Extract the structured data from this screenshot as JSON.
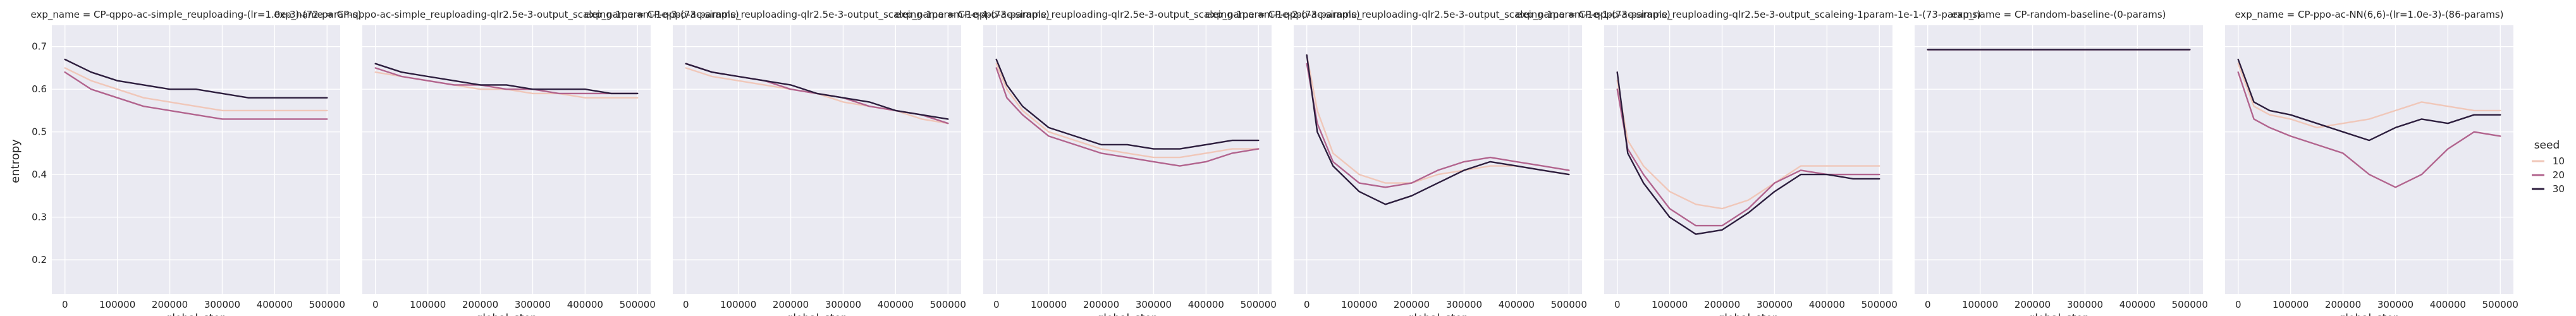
{
  "chart_data": {
    "type": "line",
    "ylabel": "entropy",
    "xlabel": "global_step",
    "x_ticks": [
      0,
      100000,
      200000,
      300000,
      400000,
      500000
    ],
    "y_ticks": [
      0.2,
      0.3,
      0.4,
      0.5,
      0.6,
      0.7
    ],
    "xlim": [
      -25000,
      525000
    ],
    "ylim": [
      0.12,
      0.75
    ],
    "grid": true,
    "legend": {
      "title": "seed",
      "placement": "right",
      "entries": [
        {
          "label": "10",
          "color": "#f0c7b9"
        },
        {
          "label": "20",
          "color": "#b2648e"
        },
        {
          "label": "30",
          "color": "#2d1e3e"
        }
      ]
    },
    "panels": [
      {
        "title": "exp_name = CP-qppo-ac-simple_reuploading-(lr=1.0e-3)-(72-params)",
        "series": [
          {
            "name": "10",
            "x": [
              0,
              50000,
              100000,
              150000,
              200000,
              250000,
              300000,
              350000,
              400000,
              450000,
              500000
            ],
            "y": [
              0.65,
              0.62,
              0.6,
              0.58,
              0.57,
              0.56,
              0.55,
              0.55,
              0.55,
              0.55,
              0.55
            ]
          },
          {
            "name": "20",
            "x": [
              0,
              50000,
              100000,
              150000,
              200000,
              250000,
              300000,
              350000,
              400000,
              450000,
              500000
            ],
            "y": [
              0.64,
              0.6,
              0.58,
              0.56,
              0.55,
              0.54,
              0.53,
              0.53,
              0.53,
              0.53,
              0.53
            ]
          },
          {
            "name": "30",
            "x": [
              0,
              50000,
              100000,
              150000,
              200000,
              250000,
              300000,
              350000,
              400000,
              450000,
              500000
            ],
            "y": [
              0.67,
              0.64,
              0.62,
              0.61,
              0.6,
              0.6,
              0.59,
              0.58,
              0.58,
              0.58,
              0.58
            ]
          }
        ]
      },
      {
        "title": "exp_name = CP-qppo-ac-simple_reuploading-qlr2.5e-3-output_scaleing-1param-1e-3-(73-params)",
        "series": [
          {
            "name": "10",
            "x": [
              0,
              50000,
              100000,
              150000,
              200000,
              250000,
              300000,
              350000,
              400000,
              450000,
              500000
            ],
            "y": [
              0.64,
              0.63,
              0.62,
              0.61,
              0.6,
              0.6,
              0.59,
              0.59,
              0.58,
              0.58,
              0.58
            ]
          },
          {
            "name": "20",
            "x": [
              0,
              50000,
              100000,
              150000,
              200000,
              250000,
              300000,
              350000,
              400000,
              450000,
              500000
            ],
            "y": [
              0.65,
              0.63,
              0.62,
              0.61,
              0.61,
              0.6,
              0.6,
              0.59,
              0.59,
              0.59,
              0.59
            ]
          },
          {
            "name": "30",
            "x": [
              0,
              50000,
              100000,
              150000,
              200000,
              250000,
              300000,
              350000,
              400000,
              450000,
              500000
            ],
            "y": [
              0.66,
              0.64,
              0.63,
              0.62,
              0.61,
              0.61,
              0.6,
              0.6,
              0.6,
              0.59,
              0.59
            ]
          }
        ]
      },
      {
        "title": "exp_name = CP-qppo-ac-simple_reuploading-qlr2.5e-3-output_scaleing-1param-1e-4-(73-params)",
        "series": [
          {
            "name": "10",
            "x": [
              0,
              50000,
              100000,
              150000,
              200000,
              250000,
              300000,
              350000,
              400000,
              450000,
              500000
            ],
            "y": [
              0.65,
              0.63,
              0.62,
              0.61,
              0.6,
              0.59,
              0.57,
              0.56,
              0.55,
              0.53,
              0.52
            ]
          },
          {
            "name": "20",
            "x": [
              0,
              50000,
              100000,
              150000,
              200000,
              250000,
              300000,
              350000,
              400000,
              450000,
              500000
            ],
            "y": [
              0.66,
              0.64,
              0.63,
              0.62,
              0.6,
              0.59,
              0.58,
              0.56,
              0.55,
              0.54,
              0.52
            ]
          },
          {
            "name": "30",
            "x": [
              0,
              50000,
              100000,
              150000,
              200000,
              250000,
              300000,
              350000,
              400000,
              450000,
              500000
            ],
            "y": [
              0.66,
              0.64,
              0.63,
              0.62,
              0.61,
              0.59,
              0.58,
              0.57,
              0.55,
              0.54,
              0.53
            ]
          }
        ]
      },
      {
        "title": "exp_name = CP-qppo-ac-simple_reuploading-qlr2.5e-3-output_scaleing-1param-1e-2-(73-params)",
        "series": [
          {
            "name": "10",
            "x": [
              0,
              20000,
              50000,
              100000,
              150000,
              200000,
              250000,
              300000,
              350000,
              400000,
              450000,
              500000
            ],
            "y": [
              0.66,
              0.6,
              0.55,
              0.5,
              0.48,
              0.46,
              0.45,
              0.44,
              0.44,
              0.45,
              0.46,
              0.46
            ]
          },
          {
            "name": "20",
            "x": [
              0,
              20000,
              50000,
              100000,
              150000,
              200000,
              250000,
              300000,
              350000,
              400000,
              450000,
              500000
            ],
            "y": [
              0.65,
              0.58,
              0.54,
              0.49,
              0.47,
              0.45,
              0.44,
              0.43,
              0.42,
              0.43,
              0.45,
              0.46
            ]
          },
          {
            "name": "30",
            "x": [
              0,
              20000,
              50000,
              100000,
              150000,
              200000,
              250000,
              300000,
              350000,
              400000,
              450000,
              500000
            ],
            "y": [
              0.67,
              0.61,
              0.56,
              0.51,
              0.49,
              0.47,
              0.47,
              0.46,
              0.46,
              0.47,
              0.48,
              0.48
            ]
          }
        ]
      },
      {
        "title": "exp_name = CP-qppo-ac-simple_reuploading-qlr2.5e-3-output_scaleing-1param-1e-1-(73-params)",
        "series": [
          {
            "name": "10",
            "x": [
              0,
              20000,
              50000,
              100000,
              150000,
              200000,
              250000,
              300000,
              350000,
              400000,
              450000,
              500000
            ],
            "y": [
              0.68,
              0.55,
              0.45,
              0.4,
              0.38,
              0.38,
              0.4,
              0.41,
              0.42,
              0.42,
              0.41,
              0.4
            ]
          },
          {
            "name": "20",
            "x": [
              0,
              20000,
              50000,
              100000,
              150000,
              200000,
              250000,
              300000,
              350000,
              400000,
              450000,
              500000
            ],
            "y": [
              0.66,
              0.52,
              0.43,
              0.38,
              0.37,
              0.38,
              0.41,
              0.43,
              0.44,
              0.43,
              0.42,
              0.41
            ]
          },
          {
            "name": "30",
            "x": [
              0,
              20000,
              50000,
              100000,
              150000,
              200000,
              250000,
              300000,
              350000,
              400000,
              450000,
              500000
            ],
            "y": [
              0.68,
              0.5,
              0.42,
              0.36,
              0.33,
              0.35,
              0.38,
              0.41,
              0.43,
              0.42,
              0.41,
              0.4
            ]
          }
        ]
      },
      {
        "title": "exp_name = CP-qppo-ac-simple_reuploading-qlr2.5e-3-output_scaleing-1param-1e-1-(73-params)",
        "series": [
          {
            "name": "10",
            "x": [
              0,
              20000,
              50000,
              100000,
              150000,
              200000,
              250000,
              300000,
              350000,
              400000,
              450000,
              500000
            ],
            "y": [
              0.62,
              0.48,
              0.42,
              0.36,
              0.33,
              0.32,
              0.34,
              0.38,
              0.42,
              0.42,
              0.42,
              0.42
            ]
          },
          {
            "name": "20",
            "x": [
              0,
              20000,
              50000,
              100000,
              150000,
              200000,
              250000,
              300000,
              350000,
              400000,
              450000,
              500000
            ],
            "y": [
              0.6,
              0.46,
              0.4,
              0.32,
              0.28,
              0.28,
              0.32,
              0.38,
              0.41,
              0.4,
              0.4,
              0.4
            ]
          },
          {
            "name": "30",
            "x": [
              0,
              20000,
              50000,
              100000,
              150000,
              200000,
              250000,
              300000,
              350000,
              400000,
              450000,
              500000
            ],
            "y": [
              0.64,
              0.45,
              0.38,
              0.3,
              0.26,
              0.27,
              0.31,
              0.36,
              0.4,
              0.4,
              0.39,
              0.39
            ]
          }
        ]
      },
      {
        "title": "exp_name = CP-random-baseline-(0-params)",
        "series": [
          {
            "name": "10",
            "x": [
              0,
              500000
            ],
            "y": [
              0.693,
              0.693
            ]
          },
          {
            "name": "20",
            "x": [
              0,
              500000
            ],
            "y": [
              0.693,
              0.693
            ]
          },
          {
            "name": "30",
            "x": [
              0,
              500000
            ],
            "y": [
              0.693,
              0.693
            ]
          }
        ]
      },
      {
        "title": "exp_name = CP-ppo-ac-NN(6,6)-(lr=1.0e-3)-(86-params)",
        "series": [
          {
            "name": "10",
            "x": [
              0,
              30000,
              60000,
              100000,
              150000,
              200000,
              250000,
              300000,
              350000,
              400000,
              450000,
              500000
            ],
            "y": [
              0.66,
              0.56,
              0.54,
              0.53,
              0.51,
              0.52,
              0.53,
              0.55,
              0.57,
              0.56,
              0.55,
              0.55
            ]
          },
          {
            "name": "20",
            "x": [
              0,
              30000,
              60000,
              100000,
              150000,
              200000,
              250000,
              300000,
              350000,
              400000,
              450000,
              500000
            ],
            "y": [
              0.64,
              0.53,
              0.51,
              0.49,
              0.47,
              0.45,
              0.4,
              0.37,
              0.4,
              0.46,
              0.5,
              0.49
            ]
          },
          {
            "name": "30",
            "x": [
              0,
              30000,
              60000,
              100000,
              150000,
              200000,
              250000,
              300000,
              350000,
              400000,
              450000,
              500000
            ],
            "y": [
              0.67,
              0.57,
              0.55,
              0.54,
              0.52,
              0.5,
              0.48,
              0.51,
              0.53,
              0.52,
              0.54,
              0.54
            ]
          }
        ]
      }
    ]
  }
}
